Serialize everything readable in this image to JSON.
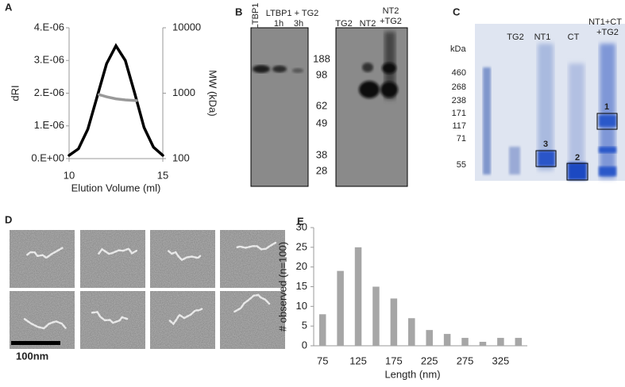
{
  "chart_data": [
    {
      "type": "line",
      "xlabel": "Elution Volume (ml)",
      "ylabel": "dRI",
      "y2label": "MW (kDa)",
      "xlim": [
        10,
        15
      ],
      "xticks": [
        10,
        15
      ],
      "ylim": [
        0,
        4e-06
      ],
      "yticks": [
        {
          "value": 0,
          "label": "0.E+00"
        },
        {
          "value": 1e-06,
          "label": "1.E-06"
        },
        {
          "value": 2e-06,
          "label": "2.E-06"
        },
        {
          "value": 3e-06,
          "label": "3.E-06"
        },
        {
          "value": 4e-06,
          "label": "4.E-06"
        }
      ],
      "y2lim": [
        100,
        10000
      ],
      "y2ticks": [
        100,
        1000,
        10000
      ],
      "y2scale": "log",
      "series": [
        {
          "color": "#000000",
          "x": [
            10,
            10.5,
            11,
            11.5,
            12,
            12.5,
            13,
            13.5,
            14,
            14.5,
            15
          ],
          "values": [
            1e-07,
            3e-07,
            9e-07,
            1.9e-06,
            2.9e-06,
            3.45e-06,
            3e-06,
            2e-06,
            9.5e-07,
            3.5e-07,
            1e-07
          ]
        },
        {
          "color": "#999999",
          "axis": "y2",
          "x": [
            11.6,
            12,
            12.5,
            13,
            13.6
          ],
          "values": [
            950,
            880,
            820,
            790,
            770
          ]
        }
      ]
    },
    {
      "type": "bar",
      "xlabel": "Length (nm)",
      "ylabel": "# observed (n=100)",
      "categories": [
        "75",
        null,
        "125",
        null,
        "175",
        null,
        "225",
        null,
        "275",
        null,
        "325",
        null
      ],
      "values": [
        8,
        19,
        25,
        15,
        12,
        7,
        4,
        3,
        2,
        1,
        2,
        2
      ],
      "color": "#a6a6a6",
      "ylim": [
        0,
        30
      ],
      "yticks": [
        0,
        5,
        10,
        15,
        20,
        25,
        30
      ],
      "grid": false
    }
  ],
  "panel_labels": [
    "A",
    "B",
    "C",
    "D",
    "E"
  ],
  "blot_b": {
    "lane_ltbp1": "LTBP1",
    "lane_group": "LTBP1 + TG2",
    "lane_1h": "1h",
    "lane_3h": "3h",
    "lane_tg2": "TG2",
    "lane_nt2": "NT2",
    "lane_nt2tg2_a": "NT2",
    "lane_nt2tg2_b": "+TG2",
    "markers": [
      "188",
      "98",
      "62",
      "49",
      "38",
      "28"
    ]
  },
  "gel_c": {
    "unit": "kDa",
    "markers": [
      "460",
      "268",
      "238",
      "171",
      "117",
      "71",
      "55"
    ],
    "lanes": [
      "TG2",
      "NT1",
      "CT"
    ],
    "lane_mix_a": "NT1+CT",
    "lane_mix_b": "+TG2",
    "boxes": [
      "1",
      "2",
      "3"
    ]
  },
  "em_d": {
    "scale": "100nm"
  }
}
